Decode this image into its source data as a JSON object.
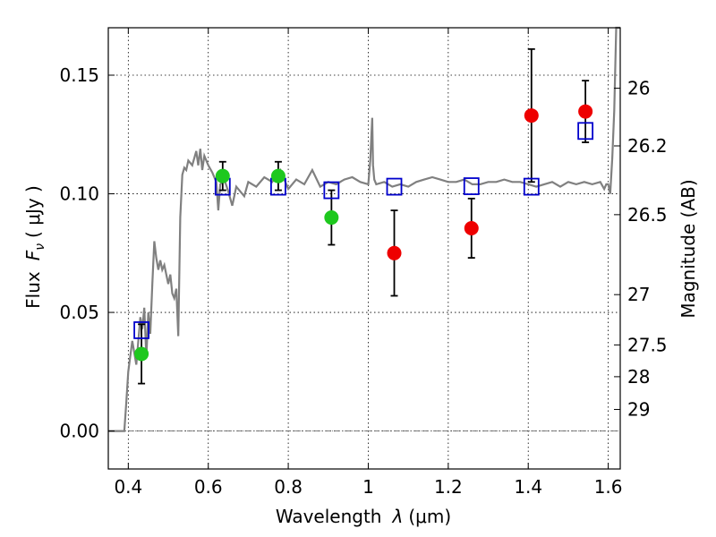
{
  "chart_data": {
    "type": "scatter",
    "xlabel_main": "Wavelength",
    "xlabel_symbol": "λ",
    "xlabel_unit": "(μm)",
    "ylabel_main": "Flux",
    "ylabel_symbol": "F",
    "ylabel_sub": "ν",
    "ylabel_unit": "( μJy )",
    "y2label": "Magnitude (AB)",
    "xlim": [
      0.35,
      1.63
    ],
    "ylim": [
      -0.016,
      0.17
    ],
    "x_ticks": [
      0.4,
      0.6,
      0.8,
      1.0,
      1.2,
      1.4,
      1.6
    ],
    "x_tick_labels": [
      "0.4",
      "0.6",
      "0.8",
      "1",
      "1.2",
      "1.4",
      "1.6"
    ],
    "y_ticks": [
      0.0,
      0.05,
      0.1,
      0.15
    ],
    "y_tick_labels": [
      "0.00",
      "0.05",
      "0.10",
      "0.15"
    ],
    "y2_ticks": [
      {
        "label": "26",
        "flux": 0.1445
      },
      {
        "label": "26.2",
        "flux": 0.1202
      },
      {
        "label": "26.5",
        "flux": 0.0912
      },
      {
        "label": "27",
        "flux": 0.0575
      },
      {
        "label": "27.5",
        "flux": 0.0363
      },
      {
        "label": "28",
        "flux": 0.0229
      },
      {
        "label": "29",
        "flux": 0.0091
      }
    ],
    "grid": true,
    "colors": {
      "model": "#808080",
      "green": "#1ec81e",
      "red": "#ee0000",
      "square": "#0000cc",
      "errorbar": "#000000",
      "zero_line": "#555555"
    },
    "series": [
      {
        "kind": "model",
        "x": [
          0.35,
          0.39,
          0.395,
          0.4,
          0.41,
          0.42,
          0.43,
          0.435,
          0.44,
          0.445,
          0.45,
          0.455,
          0.46,
          0.465,
          0.47,
          0.475,
          0.48,
          0.485,
          0.49,
          0.5,
          0.505,
          0.51,
          0.515,
          0.52,
          0.525,
          0.53,
          0.535,
          0.54,
          0.545,
          0.55,
          0.56,
          0.57,
          0.575,
          0.58,
          0.585,
          0.59,
          0.6,
          0.61,
          0.62,
          0.625,
          0.63,
          0.64,
          0.65,
          0.66,
          0.67,
          0.68,
          0.69,
          0.7,
          0.72,
          0.74,
          0.76,
          0.78,
          0.8,
          0.82,
          0.84,
          0.86,
          0.88,
          0.9,
          0.92,
          0.94,
          0.96,
          0.98,
          1.0,
          1.005,
          1.01,
          1.012,
          1.015,
          1.02,
          1.04,
          1.06,
          1.08,
          1.1,
          1.12,
          1.14,
          1.16,
          1.18,
          1.2,
          1.22,
          1.24,
          1.26,
          1.28,
          1.3,
          1.32,
          1.34,
          1.36,
          1.38,
          1.4,
          1.42,
          1.44,
          1.46,
          1.48,
          1.5,
          1.52,
          1.54,
          1.56,
          1.58,
          1.59,
          1.595,
          1.6,
          1.605,
          1.61,
          1.615,
          1.62,
          1.63
        ],
        "y": [
          0.0,
          0.0,
          0.012,
          0.025,
          0.038,
          0.028,
          0.048,
          0.043,
          0.052,
          0.031,
          0.05,
          0.041,
          0.062,
          0.08,
          0.073,
          0.068,
          0.072,
          0.068,
          0.07,
          0.062,
          0.066,
          0.058,
          0.056,
          0.06,
          0.04,
          0.09,
          0.108,
          0.111,
          0.11,
          0.114,
          0.112,
          0.118,
          0.112,
          0.119,
          0.11,
          0.116,
          0.112,
          0.109,
          0.105,
          0.093,
          0.104,
          0.106,
          0.101,
          0.095,
          0.103,
          0.101,
          0.099,
          0.105,
          0.103,
          0.107,
          0.105,
          0.11,
          0.102,
          0.106,
          0.104,
          0.11,
          0.103,
          0.105,
          0.104,
          0.106,
          0.107,
          0.105,
          0.104,
          0.114,
          0.132,
          0.112,
          0.106,
          0.104,
          0.105,
          0.103,
          0.104,
          0.103,
          0.105,
          0.106,
          0.107,
          0.106,
          0.105,
          0.105,
          0.106,
          0.104,
          0.104,
          0.105,
          0.105,
          0.106,
          0.105,
          0.105,
          0.104,
          0.103,
          0.104,
          0.105,
          0.103,
          0.105,
          0.104,
          0.105,
          0.104,
          0.105,
          0.102,
          0.104,
          0.104,
          0.1,
          0.115,
          0.135,
          0.17,
          0.18
        ]
      },
      {
        "kind": "green_points",
        "points": [
          {
            "x": 0.433,
            "y": 0.0325,
            "err": 0.0125
          },
          {
            "x": 0.636,
            "y": 0.1075,
            "err": 0.006
          },
          {
            "x": 0.775,
            "y": 0.1075,
            "err": 0.006
          },
          {
            "x": 0.908,
            "y": 0.09,
            "err": 0.0115
          }
        ]
      },
      {
        "kind": "red_points",
        "points": [
          {
            "x": 1.065,
            "y": 0.075,
            "err": 0.018
          },
          {
            "x": 1.258,
            "y": 0.0855,
            "err": 0.0125
          },
          {
            "x": 1.408,
            "y": 0.133,
            "err": 0.028
          },
          {
            "x": 1.543,
            "y": 0.1347,
            "err": 0.013
          }
        ]
      },
      {
        "kind": "model_squares",
        "points": [
          {
            "x": 0.433,
            "y": 0.0425
          },
          {
            "x": 0.636,
            "y": 0.103
          },
          {
            "x": 0.775,
            "y": 0.103
          },
          {
            "x": 0.908,
            "y": 0.1015
          },
          {
            "x": 1.065,
            "y": 0.103
          },
          {
            "x": 1.258,
            "y": 0.1032
          },
          {
            "x": 1.408,
            "y": 0.103
          },
          {
            "x": 1.543,
            "y": 0.1265
          }
        ]
      }
    ]
  }
}
